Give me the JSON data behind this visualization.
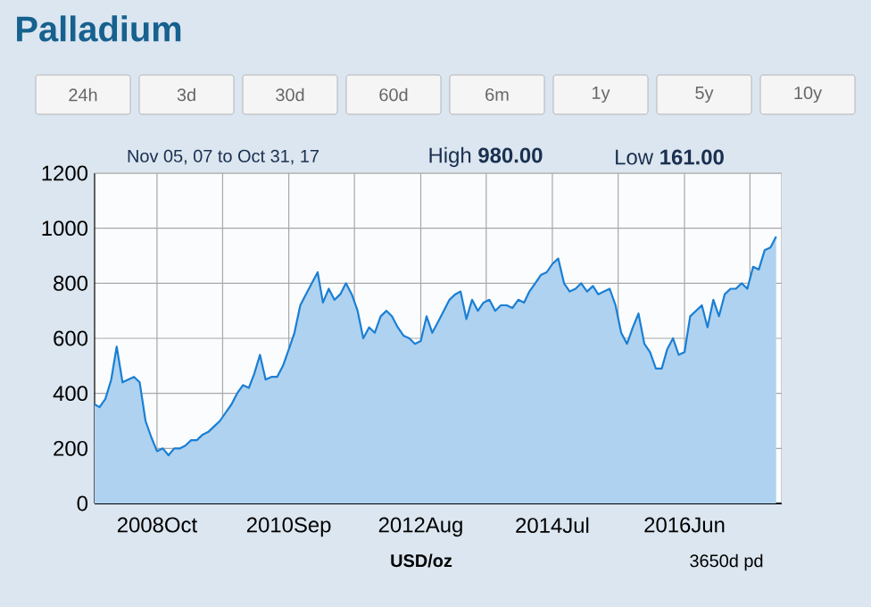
{
  "chart_data": {
    "type": "area",
    "title": "Palladium",
    "xlabel": "USD/oz",
    "annotations": [
      "24h",
      "3d",
      "30d",
      "60d",
      "6m",
      "1y",
      "5y",
      "10y",
      "Nov 05, 07 to Oct 31, 17",
      "High **980.00**",
      "Low **161.00**",
      "3650d pd"
    ],
    "x": [
      "2007-11-05",
      "2007-12",
      "2008-01",
      "2008-02",
      "2008-03",
      "2008-04",
      "2008-05",
      "2008-06",
      "2008-07",
      "2008-08",
      "2008-09",
      "2008-10",
      "2008-11",
      "2008-12",
      "2009-01",
      "2009-02",
      "2009-03",
      "2009-04",
      "2009-05",
      "2009-06",
      "2009-07",
      "2009-08",
      "2009-09",
      "2009-10",
      "2009-11",
      "2009-12",
      "2010-01",
      "2010-02",
      "2010-03",
      "2010-04",
      "2010-05",
      "2010-06",
      "2010-07",
      "2010-08",
      "2010-09",
      "2010-10",
      "2010-11",
      "2010-12",
      "2011-01",
      "2011-02",
      "2011-03",
      "2011-04",
      "2011-05",
      "2011-06",
      "2011-07",
      "2011-08",
      "2011-09",
      "2011-10",
      "2011-11",
      "2011-12",
      "2012-01",
      "2012-02",
      "2012-03",
      "2012-04",
      "2012-05",
      "2012-06",
      "2012-07",
      "2012-08",
      "2012-09",
      "2012-10",
      "2012-11",
      "2012-12",
      "2013-01",
      "2013-02",
      "2013-03",
      "2013-04",
      "2013-05",
      "2013-06",
      "2013-07",
      "2013-08",
      "2013-09",
      "2013-10",
      "2013-11",
      "2013-12",
      "2014-01",
      "2014-02",
      "2014-03",
      "2014-04",
      "2014-05",
      "2014-06",
      "2014-07",
      "2014-08",
      "2014-09",
      "2014-10",
      "2014-11",
      "2014-12",
      "2015-01",
      "2015-02",
      "2015-03",
      "2015-04",
      "2015-05",
      "2015-06",
      "2015-07",
      "2015-08",
      "2015-09",
      "2015-10",
      "2015-11",
      "2015-12",
      "2016-01",
      "2016-02",
      "2016-03",
      "2016-04",
      "2016-05",
      "2016-06",
      "2016-07",
      "2016-08",
      "2016-09",
      "2016-10",
      "2016-11",
      "2016-12",
      "2017-01",
      "2017-02",
      "2017-03",
      "2017-04",
      "2017-05",
      "2017-06",
      "2017-07",
      "2017-08",
      "2017-09",
      "2017-10"
    ],
    "series": [
      {
        "color": "#1a7fd4",
        "values": [
          360,
          350,
          380,
          450,
          570,
          440,
          450,
          460,
          440,
          300,
          240,
          190,
          200,
          175,
          200,
          200,
          210,
          230,
          230,
          250,
          260,
          280,
          300,
          330,
          360,
          400,
          430,
          420,
          470,
          540,
          450,
          460,
          460,
          500,
          560,
          620,
          720,
          760,
          800,
          840,
          730,
          780,
          740,
          760,
          800,
          760,
          700,
          600,
          640,
          620,
          680,
          700,
          680,
          640,
          610,
          600,
          580,
          590,
          680,
          620,
          660,
          700,
          740,
          760,
          770,
          670,
          740,
          700,
          730,
          740,
          700,
          720,
          720,
          710,
          740,
          730,
          770,
          800,
          830,
          840,
          870,
          890,
          800,
          770,
          780,
          800,
          770,
          790,
          760,
          770,
          780,
          720,
          620,
          580,
          640,
          690,
          580,
          550,
          490,
          490,
          560,
          600,
          540,
          550,
          680,
          700,
          720,
          640,
          740,
          680,
          760,
          780,
          780,
          800,
          780,
          860,
          850,
          920,
          930,
          970
        ]
      }
    ],
    "xlim": [
      "2007-11-05",
      "2017-10-31"
    ],
    "xticks": [
      {
        "value": "2008-10-01",
        "label": "2008Oct"
      },
      {
        "value": "2009-09-15",
        "label": null
      },
      {
        "value": "2010-09-01",
        "label": "2010Sep"
      },
      {
        "value": "2011-08-15",
        "label": null
      },
      {
        "value": "2012-08-01",
        "label": "2012Aug"
      },
      {
        "value": "2013-07-15",
        "label": null
      },
      {
        "value": "2014-07-01",
        "label": "2014Jul"
      },
      {
        "value": "2015-06-15",
        "label": null
      },
      {
        "value": "2016-06-01",
        "label": "2016Jun"
      },
      {
        "value": "2017-05-15",
        "label": null
      }
    ],
    "ylim": [
      0,
      1200
    ],
    "yticks": [
      0,
      200,
      400,
      600,
      800,
      1000,
      1200
    ],
    "grid": true,
    "marker": "none"
  }
}
